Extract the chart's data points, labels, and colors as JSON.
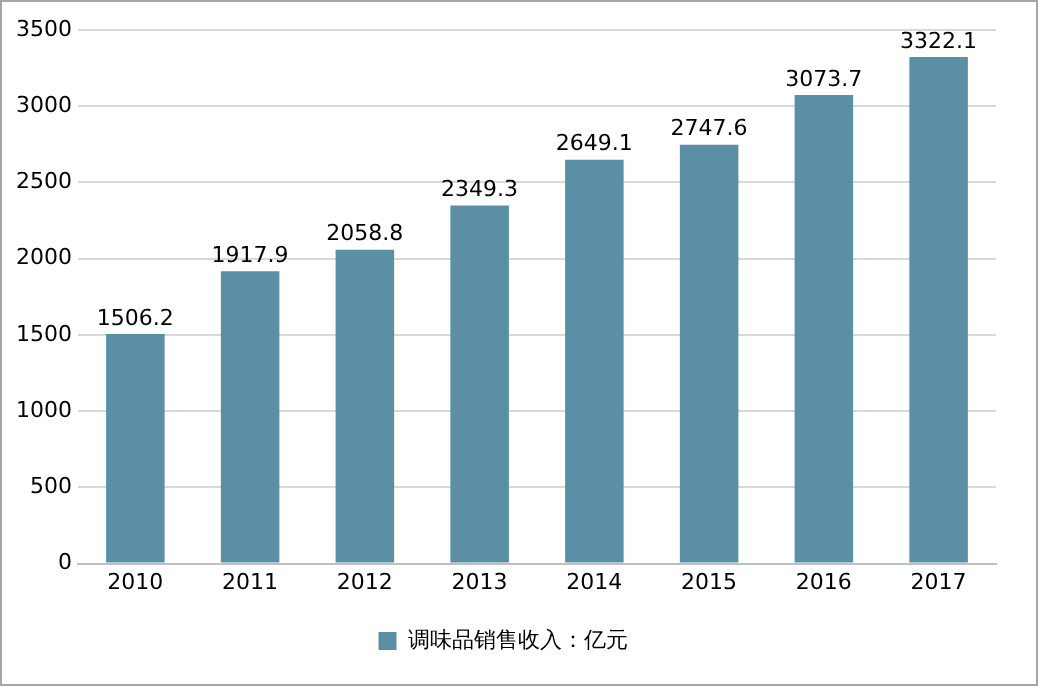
{
  "chart_data": {
    "type": "bar",
    "categories": [
      "2010",
      "2011",
      "2012",
      "2013",
      "2014",
      "2015",
      "2016",
      "2017"
    ],
    "series": [
      {
        "name": "调味品销售收入：亿元",
        "color": "#5b8fa5",
        "values": [
          1506.2,
          1917.9,
          2058.8,
          2349.3,
          2649.1,
          2747.6,
          3073.7,
          3322.1
        ]
      }
    ],
    "ylim": [
      0,
      3500
    ],
    "yticks": [
      0,
      500,
      1000,
      1500,
      2000,
      2500,
      3000,
      3500
    ],
    "grid": "y",
    "legend": "bottom",
    "data_labels": true
  }
}
